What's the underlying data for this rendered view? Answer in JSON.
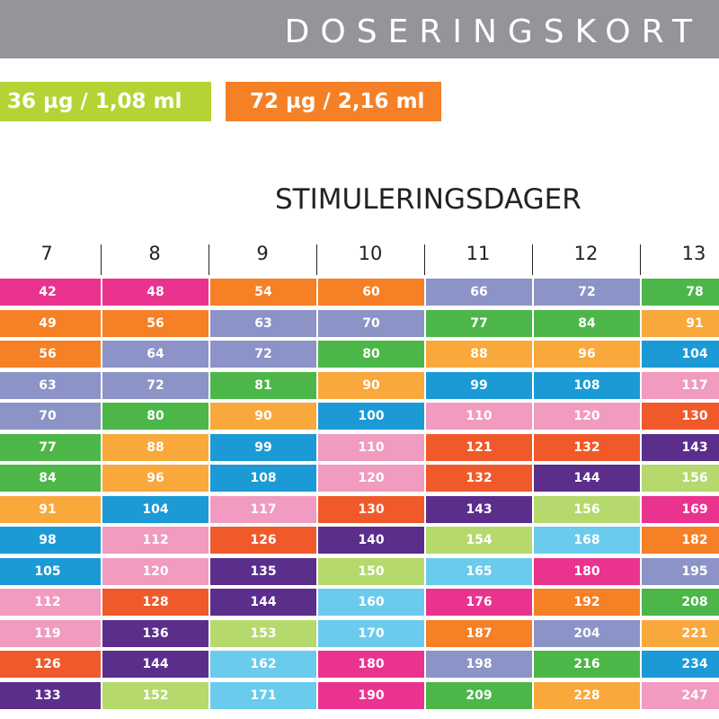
{
  "header": {
    "title": "DOSERINGSKORT",
    "bar_color": "#939598"
  },
  "doses": [
    {
      "label": "36 µg / 1,08 ml",
      "color": "#b5d334"
    },
    {
      "label": "72 µg / 2,16 ml",
      "color": "#f58025"
    }
  ],
  "section_title": "STIMULERINGSDAGER",
  "columns": [
    "7",
    "8",
    "9",
    "10",
    "11",
    "12",
    "13"
  ],
  "table": {
    "rows": [
      [
        {
          "v": "42",
          "c": "#e9338e"
        },
        {
          "v": "48",
          "c": "#e9338e"
        },
        {
          "v": "54",
          "c": "#f58025"
        },
        {
          "v": "60",
          "c": "#f58025"
        },
        {
          "v": "66",
          "c": "#8c93c6"
        },
        {
          "v": "72",
          "c": "#8c93c6"
        },
        {
          "v": "78",
          "c": "#4cb748"
        }
      ],
      [
        {
          "v": "49",
          "c": "#f58025"
        },
        {
          "v": "56",
          "c": "#f58025"
        },
        {
          "v": "63",
          "c": "#8c93c6"
        },
        {
          "v": "70",
          "c": "#8c93c6"
        },
        {
          "v": "77",
          "c": "#4cb748"
        },
        {
          "v": "84",
          "c": "#4cb748"
        },
        {
          "v": "91",
          "c": "#f9a83c"
        }
      ],
      [
        {
          "v": "56",
          "c": "#f58025"
        },
        {
          "v": "64",
          "c": "#8c93c6"
        },
        {
          "v": "72",
          "c": "#8c93c6"
        },
        {
          "v": "80",
          "c": "#4cb748"
        },
        {
          "v": "88",
          "c": "#f9a83c"
        },
        {
          "v": "96",
          "c": "#f9a83c"
        },
        {
          "v": "104",
          "c": "#1b9ad6"
        }
      ],
      [
        {
          "v": "63",
          "c": "#8c93c6"
        },
        {
          "v": "72",
          "c": "#8c93c6"
        },
        {
          "v": "81",
          "c": "#4cb748"
        },
        {
          "v": "90",
          "c": "#f9a83c"
        },
        {
          "v": "99",
          "c": "#1b9ad6"
        },
        {
          "v": "108",
          "c": "#1b9ad6"
        },
        {
          "v": "117",
          "c": "#f19bc0"
        }
      ],
      [
        {
          "v": "70",
          "c": "#8c93c6"
        },
        {
          "v": "80",
          "c": "#4cb748"
        },
        {
          "v": "90",
          "c": "#f9a83c"
        },
        {
          "v": "100",
          "c": "#1b9ad6"
        },
        {
          "v": "110",
          "c": "#f19bc0"
        },
        {
          "v": "120",
          "c": "#f19bc0"
        },
        {
          "v": "130",
          "c": "#f05a2a"
        }
      ],
      [
        {
          "v": "77",
          "c": "#4cb748"
        },
        {
          "v": "88",
          "c": "#f9a83c"
        },
        {
          "v": "99",
          "c": "#1b9ad6"
        },
        {
          "v": "110",
          "c": "#f19bc0"
        },
        {
          "v": "121",
          "c": "#f05a2a"
        },
        {
          "v": "132",
          "c": "#f05a2a"
        },
        {
          "v": "143",
          "c": "#5b2e8c"
        }
      ],
      [
        {
          "v": "84",
          "c": "#4cb748"
        },
        {
          "v": "96",
          "c": "#f9a83c"
        },
        {
          "v": "108",
          "c": "#1b9ad6"
        },
        {
          "v": "120",
          "c": "#f19bc0"
        },
        {
          "v": "132",
          "c": "#f05a2a"
        },
        {
          "v": "144",
          "c": "#5b2e8c"
        },
        {
          "v": "156",
          "c": "#b5d96c"
        }
      ],
      [
        {
          "v": "91",
          "c": "#f9a83c"
        },
        {
          "v": "104",
          "c": "#1b9ad6"
        },
        {
          "v": "117",
          "c": "#f19bc0"
        },
        {
          "v": "130",
          "c": "#f05a2a"
        },
        {
          "v": "143",
          "c": "#5b2e8c"
        },
        {
          "v": "156",
          "c": "#b5d96c"
        },
        {
          "v": "169",
          "c": "#e9338e"
        }
      ],
      [
        {
          "v": "98",
          "c": "#1b9ad6"
        },
        {
          "v": "112",
          "c": "#f19bc0"
        },
        {
          "v": "126",
          "c": "#f05a2a"
        },
        {
          "v": "140",
          "c": "#5b2e8c"
        },
        {
          "v": "154",
          "c": "#b5d96c"
        },
        {
          "v": "168",
          "c": "#6bcbed"
        },
        {
          "v": "182",
          "c": "#f58025"
        }
      ],
      [
        {
          "v": "105",
          "c": "#1b9ad6"
        },
        {
          "v": "120",
          "c": "#f19bc0"
        },
        {
          "v": "135",
          "c": "#5b2e8c"
        },
        {
          "v": "150",
          "c": "#b5d96c"
        },
        {
          "v": "165",
          "c": "#6bcbed"
        },
        {
          "v": "180",
          "c": "#e9338e"
        },
        {
          "v": "195",
          "c": "#8c93c6"
        }
      ],
      [
        {
          "v": "112",
          "c": "#f19bc0"
        },
        {
          "v": "128",
          "c": "#f05a2a"
        },
        {
          "v": "144",
          "c": "#5b2e8c"
        },
        {
          "v": "160",
          "c": "#6bcbed"
        },
        {
          "v": "176",
          "c": "#e9338e"
        },
        {
          "v": "192",
          "c": "#f58025"
        },
        {
          "v": "208",
          "c": "#4cb748"
        }
      ],
      [
        {
          "v": "119",
          "c": "#f19bc0"
        },
        {
          "v": "136",
          "c": "#5b2e8c"
        },
        {
          "v": "153",
          "c": "#b5d96c"
        },
        {
          "v": "170",
          "c": "#6bcbed"
        },
        {
          "v": "187",
          "c": "#f58025"
        },
        {
          "v": "204",
          "c": "#8c93c6"
        },
        {
          "v": "221",
          "c": "#f9a83c"
        }
      ],
      [
        {
          "v": "126",
          "c": "#f05a2a"
        },
        {
          "v": "144",
          "c": "#5b2e8c"
        },
        {
          "v": "162",
          "c": "#6bcbed"
        },
        {
          "v": "180",
          "c": "#e9338e"
        },
        {
          "v": "198",
          "c": "#8c93c6"
        },
        {
          "v": "216",
          "c": "#4cb748"
        },
        {
          "v": "234",
          "c": "#1b9ad6"
        }
      ],
      [
        {
          "v": "133",
          "c": "#5b2e8c"
        },
        {
          "v": "152",
          "c": "#b5d96c"
        },
        {
          "v": "171",
          "c": "#6bcbed"
        },
        {
          "v": "190",
          "c": "#e9338e"
        },
        {
          "v": "209",
          "c": "#4cb748"
        },
        {
          "v": "228",
          "c": "#f9a83c"
        },
        {
          "v": "247",
          "c": "#f19bc0"
        }
      ]
    ]
  }
}
